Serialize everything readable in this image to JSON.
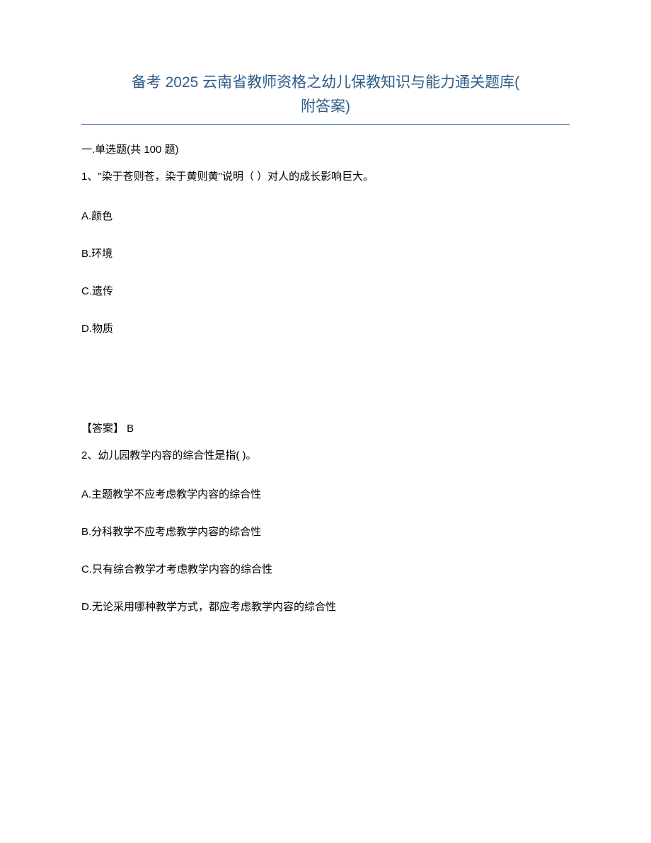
{
  "title_line1": "备考 2025 云南省教师资格之幼儿保教知识与能力通关题库(",
  "title_line2": "附答案)",
  "section_header": "一.单选题(共 100 题)",
  "question1": {
    "text": "1、\"染于苍则苍，染于黄则黄\"说明（ ）对人的成长影响巨大。",
    "options": {
      "a": "A.颜色",
      "b": "B.环境",
      "c": "C.遗传",
      "d": "D.物质"
    },
    "answer": "【答案】  B"
  },
  "question2": {
    "text": "2、幼儿园教学内容的综合性是指(     )。",
    "options": {
      "a": "A.主题教学不应考虑教学内容的综合性",
      "b": "B.分科教学不应考虑教学内容的综合性",
      "c": "C.只有综合教学才考虑教学内容的综合性",
      "d": "D.无论采用哪种教学方式，都应考虑教学内容的综合性"
    }
  },
  "colors": {
    "title_color": "#2e5c8a",
    "text_color": "#000000",
    "background_color": "#ffffff",
    "divider_color": "#2e5c8a"
  },
  "typography": {
    "title_fontsize": 21,
    "body_fontsize": 15
  }
}
